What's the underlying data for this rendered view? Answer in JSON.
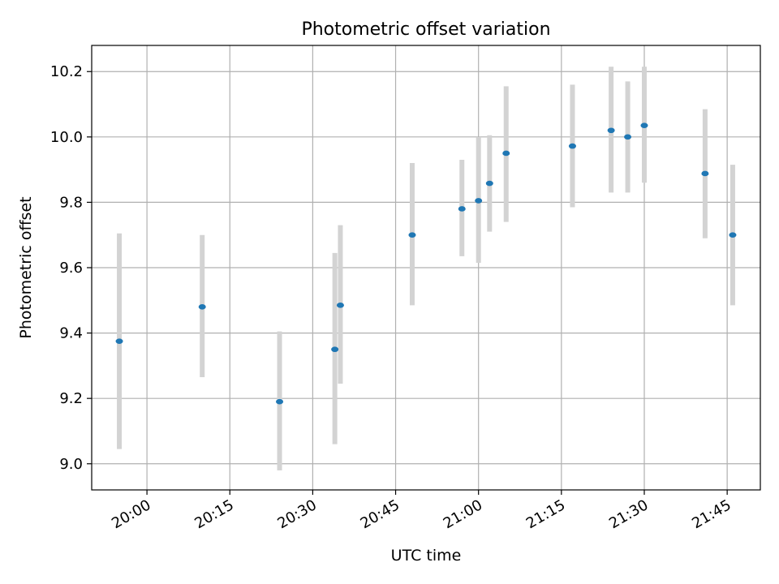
{
  "chart_data": {
    "type": "scatter",
    "title": "Photometric offset variation",
    "xlabel": "UTC time",
    "ylabel": "Photometric offset",
    "xlim": [
      "19:50",
      "21:51"
    ],
    "ylim": [
      8.92,
      10.28
    ],
    "x_ticks": [
      "20:00",
      "20:15",
      "20:30",
      "20:45",
      "21:00",
      "21:15",
      "21:30",
      "21:45"
    ],
    "y_ticks": [
      9.0,
      9.2,
      9.4,
      9.6,
      9.8,
      10.0,
      10.2
    ],
    "grid": true,
    "legend": "none",
    "point_color": "#1f77b4",
    "errorbar_color": "#d3d3d3",
    "points": [
      {
        "x": "19:55",
        "y": 9.375,
        "lo": 9.045,
        "hi": 9.705
      },
      {
        "x": "20:10",
        "y": 9.48,
        "lo": 9.265,
        "hi": 9.7
      },
      {
        "x": "20:24",
        "y": 9.19,
        "lo": 8.98,
        "hi": 9.405
      },
      {
        "x": "20:34",
        "y": 9.35,
        "lo": 9.06,
        "hi": 9.645
      },
      {
        "x": "20:35",
        "y": 9.485,
        "lo": 9.245,
        "hi": 9.73
      },
      {
        "x": "20:48",
        "y": 9.7,
        "lo": 9.485,
        "hi": 9.92
      },
      {
        "x": "20:57",
        "y": 9.78,
        "lo": 9.635,
        "hi": 9.93
      },
      {
        "x": "21:00",
        "y": 9.805,
        "lo": 9.615,
        "hi": 10.0
      },
      {
        "x": "21:02",
        "y": 9.858,
        "lo": 9.71,
        "hi": 10.005
      },
      {
        "x": "21:05",
        "y": 9.95,
        "lo": 9.74,
        "hi": 10.155
      },
      {
        "x": "21:17",
        "y": 9.972,
        "lo": 9.785,
        "hi": 10.16
      },
      {
        "x": "21:24",
        "y": 10.02,
        "lo": 9.83,
        "hi": 10.215
      },
      {
        "x": "21:27",
        "y": 10.0,
        "lo": 9.83,
        "hi": 10.17
      },
      {
        "x": "21:30",
        "y": 10.035,
        "lo": 9.86,
        "hi": 10.215
      },
      {
        "x": "21:41",
        "y": 9.888,
        "lo": 9.69,
        "hi": 10.085
      },
      {
        "x": "21:46",
        "y": 9.7,
        "lo": 9.485,
        "hi": 9.915
      }
    ]
  }
}
